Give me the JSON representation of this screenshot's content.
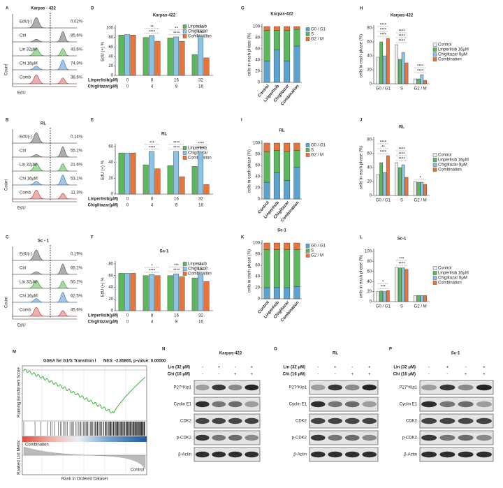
{
  "panel_letters": [
    "A",
    "B",
    "C",
    "D",
    "E",
    "F",
    "G",
    "H",
    "I",
    "J",
    "K",
    "L",
    "M",
    "N",
    "O",
    "P"
  ],
  "flow_panels": [
    {
      "title": "Karpas - 422",
      "x_label": "EdU",
      "y_label": "Count",
      "rows": [
        {
          "label": "EdU(-)",
          "percent": "0.02%"
        },
        {
          "label": "Ctrl",
          "percent": "85.6%"
        },
        {
          "label": "Lin 32μM",
          "percent": "43.6%"
        },
        {
          "label": "Chi 16μM",
          "percent": "74.9%"
        },
        {
          "label": "Comb",
          "percent": "38.6%"
        }
      ]
    },
    {
      "title": "RL",
      "x_label": "EdU",
      "y_label": "Count",
      "rows": [
        {
          "label": "EdU(-)",
          "percent": "0.14%"
        },
        {
          "label": "Ctrl",
          "percent": "55.2%"
        },
        {
          "label": "Lin 32μM",
          "percent": "21.6%"
        },
        {
          "label": "Chi 16μM",
          "percent": "53.1%"
        },
        {
          "label": "Comb",
          "percent": "11.3%"
        }
      ]
    },
    {
      "title": "Sc - 1",
      "x_label": "EdU",
      "y_label": "Count",
      "rows": [
        {
          "label": "EdU(-)",
          "percent": "0.19%"
        },
        {
          "label": "Ctrl",
          "percent": "65.2%"
        },
        {
          "label": "Lin 32μM",
          "percent": "50.2%"
        },
        {
          "label": "Chi 16μM",
          "percent": "62.5%"
        },
        {
          "label": "Comb",
          "percent": "45.6%"
        }
      ]
    }
  ],
  "chart_data": [
    {
      "type": "bar",
      "title": "Karpas-422",
      "ylabel": "EdU (+) %",
      "categories": [
        "0",
        "8",
        "16",
        "32"
      ],
      "categories2": [
        "0",
        "4",
        "8",
        "16"
      ],
      "category_labels": [
        "Linperlisib(μM)",
        "Chiglitazar(μM)"
      ],
      "series": [
        {
          "name": "Linperlisib",
          "color": "#5cb85c",
          "values": [
            85,
            80,
            79,
            44
          ]
        },
        {
          "name": "Chiglitazar",
          "color": "#8cc4e4",
          "values": [
            86,
            84,
            81,
            82
          ]
        },
        {
          "name": "Combination",
          "color": "#e8743b",
          "values": [
            85,
            72,
            72,
            37
          ]
        }
      ],
      "annotations": [
        [],
        [
          "****",
          "**"
        ],
        [
          "****",
          "**"
        ],
        [
          "****",
          "****"
        ]
      ],
      "ylim": [
        0,
        100
      ],
      "yticks": [
        0,
        20,
        40,
        60,
        80,
        100
      ]
    },
    {
      "type": "bar",
      "title": "RL",
      "ylabel": "EdU (+) %",
      "categories": [
        "0",
        "8",
        "16",
        "32"
      ],
      "categories2": [
        "0",
        "4",
        "8",
        "16"
      ],
      "category_labels": [
        "Linperlisib(μM)",
        "Chiglitazar(μM)"
      ],
      "series": [
        {
          "name": "Linperlisib",
          "color": "#5cb85c",
          "values": [
            52,
            37,
            36,
            35
          ]
        },
        {
          "name": "Chiglitazar",
          "color": "#8cc4e4",
          "values": [
            52,
            54,
            54,
            53
          ]
        },
        {
          "name": "Combination",
          "color": "#e8743b",
          "values": [
            52,
            32,
            22,
            12
          ]
        }
      ],
      "annotations": [
        [],
        [
          "****",
          "***"
        ],
        [
          "****",
          "****"
        ],
        [
          "****",
          "****"
        ]
      ],
      "ylim": [
        0,
        60
      ],
      "yticks": [
        0,
        20,
        40,
        60
      ]
    },
    {
      "type": "bar",
      "title": "Sc-1",
      "ylabel": "EdU (+) %",
      "categories": [
        "0",
        "8",
        "16",
        "32"
      ],
      "categories2": [
        "0",
        "4",
        "8",
        "16"
      ],
      "category_labels": [
        "Linperlisib(μM)",
        "Chiglitazar(μM)"
      ],
      "series": [
        {
          "name": "Linperlisib",
          "color": "#5cb85c",
          "values": [
            64,
            60,
            60,
            56
          ]
        },
        {
          "name": "Chiglitazar",
          "color": "#8cc4e4",
          "values": [
            64,
            62,
            63,
            63
          ]
        },
        {
          "name": "Combination",
          "color": "#e8743b",
          "values": [
            64,
            60,
            58,
            50
          ]
        }
      ],
      "annotations": [
        [],
        [
          "****",
          "*"
        ],
        [
          "****",
          "***"
        ],
        [
          "****",
          "***"
        ]
      ],
      "ylim": [
        0,
        80
      ],
      "yticks": [
        0,
        20,
        40,
        60,
        80
      ]
    },
    {
      "type": "stacked_bar",
      "title": "Karpas-422",
      "ylabel": "cells in each phase (%)",
      "categories": [
        "Control",
        "Linperlisib",
        "Chiglitazar",
        "Combination"
      ],
      "series": [
        {
          "name": "G0 / G1",
          "color": "#5ba3d0",
          "values": [
            38,
            58,
            38,
            65
          ]
        },
        {
          "name": "S",
          "color": "#5cb85c",
          "values": [
            55,
            35,
            55,
            30
          ]
        },
        {
          "name": "G2 / M",
          "color": "#e8743b",
          "values": [
            7,
            7,
            7,
            5
          ]
        }
      ],
      "ylim": [
        0,
        100
      ],
      "yticks": [
        0,
        20,
        40,
        60,
        80,
        100
      ]
    },
    {
      "type": "bar",
      "title": "Karpas-422",
      "ylabel": "cells in each phase (%)",
      "categories": [
        "G0 / G1",
        "S",
        "G2 / M"
      ],
      "series": [
        {
          "name": "Control",
          "color": "#eeeeee",
          "values": [
            38,
            56,
            7
          ]
        },
        {
          "name": "Linperlisib 16μM",
          "color": "#5cb85c",
          "values": [
            60,
            35,
            7
          ]
        },
        {
          "name": "Chiglitazar 8μM",
          "color": "#8cc4e4",
          "values": [
            40,
            45,
            13
          ]
        },
        {
          "name": "Combination",
          "color": "#e8743b",
          "values": [
            65,
            30,
            5
          ]
        }
      ],
      "annotations": [
        [
          "****",
          "****",
          "****"
        ],
        [
          "****",
          "****",
          "****"
        ],
        [
          "****",
          "****"
        ]
      ],
      "ylim": [
        0,
        80
      ],
      "yticks": [
        0,
        20,
        40,
        60,
        80
      ]
    },
    {
      "type": "stacked_bar",
      "title": "RL",
      "ylabel": "cells in each phase (%)",
      "categories": [
        "Control",
        "Linperlisib",
        "Chiglitazar",
        "Combination"
      ],
      "series": [
        {
          "name": "G0 / G1",
          "color": "#5ba3d0",
          "values": [
            30,
            47,
            33,
            57
          ]
        },
        {
          "name": "S",
          "color": "#5cb85c",
          "values": [
            55,
            40,
            52,
            30
          ]
        },
        {
          "name": "G2 / M",
          "color": "#e8743b",
          "values": [
            15,
            13,
            15,
            13
          ]
        }
      ],
      "ylim": [
        0,
        100
      ],
      "yticks": [
        0,
        20,
        40,
        60,
        80,
        100
      ]
    },
    {
      "type": "bar",
      "title": "RL",
      "ylabel": "cells in each phase (%)",
      "categories": [
        "G0 / G1",
        "S",
        "G2 / M"
      ],
      "series": [
        {
          "name": "Control",
          "color": "#eeeeee",
          "values": [
            30,
            47,
            20
          ]
        },
        {
          "name": "Linperlisib 16μM",
          "color": "#5cb85c",
          "values": [
            47,
            40,
            19
          ]
        },
        {
          "name": "Chiglitazar 8μM",
          "color": "#8cc4e4",
          "values": [
            33,
            44,
            19
          ]
        },
        {
          "name": "Combination",
          "color": "#e8743b",
          "values": [
            57,
            26,
            16
          ]
        }
      ],
      "annotations": [
        [
          "****",
          "**",
          "****"
        ],
        [
          "****",
          "****",
          "****"
        ],
        [
          "*"
        ]
      ],
      "ylim": [
        0,
        80
      ],
      "yticks": [
        0,
        20,
        40,
        60,
        80
      ]
    },
    {
      "type": "stacked_bar",
      "title": "Sc-1",
      "ylabel": "cells in each phase (%)",
      "categories": [
        "Control",
        "Linperlisib",
        "Chiglitazar",
        "Combination"
      ],
      "series": [
        {
          "name": "G0 / G1",
          "color": "#5ba3d0",
          "values": [
            20,
            21,
            20,
            22
          ]
        },
        {
          "name": "S",
          "color": "#5cb85c",
          "values": [
            68,
            67,
            68,
            66
          ]
        },
        {
          "name": "G2 / M",
          "color": "#e8743b",
          "values": [
            12,
            12,
            12,
            12
          ]
        }
      ],
      "ylim": [
        0,
        100
      ],
      "yticks": [
        0,
        20,
        40,
        60,
        80,
        100
      ]
    },
    {
      "type": "bar",
      "title": "Sc-1",
      "ylabel": "cells in each phase (%)",
      "categories": [
        "G0 / G1",
        "S",
        "G2 / M"
      ],
      "series": [
        {
          "name": "Control",
          "color": "#eeeeee",
          "values": [
            20,
            68,
            12
          ]
        },
        {
          "name": "Linperlisib 16μM",
          "color": "#5cb85c",
          "values": [
            21,
            67,
            12
          ]
        },
        {
          "name": "Chiglitazar 8μM",
          "color": "#8cc4e4",
          "values": [
            20,
            67,
            12
          ]
        },
        {
          "name": "Combination",
          "color": "#e8743b",
          "values": [
            22,
            64,
            12
          ]
        }
      ],
      "annotations": [
        [
          "***",
          "*"
        ],
        [
          "****",
          "***"
        ],
        []
      ],
      "ylim": [
        0,
        100
      ],
      "yticks": [
        0,
        20,
        40,
        60,
        80,
        100
      ]
    }
  ],
  "gsea": {
    "title": "GSEA for G1/S Transition I",
    "stats": "NES: -2.85865, p-value: 0.00000",
    "y_label_top": "Running Enrichment Score",
    "y_label_bottom": "Ranked List Metric",
    "x_label": "Rank in Ordered Dataset",
    "left_label": "Combination",
    "right_label": "Control"
  },
  "blots": [
    {
      "title": "Karpas-422",
      "treatments": [
        {
          "label": "Lin (32 μM)",
          "signs": [
            "-",
            "+",
            "-",
            "+"
          ]
        },
        {
          "label": "Chi (16 μM)",
          "signs": [
            "-",
            "-",
            "+",
            "+"
          ]
        }
      ],
      "proteins": [
        "P27^Kip1",
        "Cyclin E1",
        "CDK2",
        "p-CDK2",
        "β-Actin"
      ]
    },
    {
      "title": "RL",
      "treatments": [
        {
          "label": "Lin (32 μM)",
          "signs": [
            "-",
            "+",
            "-",
            "+"
          ]
        },
        {
          "label": "Chi (16 μM)",
          "signs": [
            "-",
            "-",
            "+",
            "+"
          ]
        }
      ],
      "proteins": [
        "P27^Kip1",
        "Cyclin E1",
        "CDK2",
        "p-CDK2",
        "β-Actin"
      ]
    },
    {
      "title": "Sc-1",
      "treatments": [
        {
          "label": "Lin (32 μM)",
          "signs": [
            "-",
            "+",
            "-",
            "+"
          ]
        },
        {
          "label": "Chi (16 μM)",
          "signs": [
            "-",
            "-",
            "+",
            "+"
          ]
        }
      ],
      "proteins": [
        "P27^Kip1",
        "Cyclin E1",
        "CDK2",
        "p-CDK2",
        "β-Actin"
      ]
    }
  ]
}
